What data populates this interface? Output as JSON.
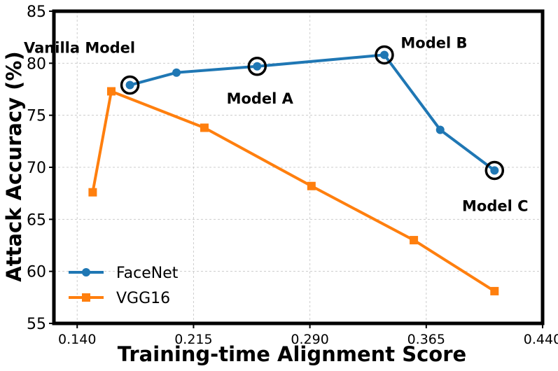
{
  "chart_data": {
    "type": "line",
    "title": "",
    "xlabel": "Training-time Alignment Score",
    "ylabel": "Attack Accuracy (%)",
    "xlim": [
      0.125,
      0.44
    ],
    "ylim": [
      55,
      85
    ],
    "x_ticks": [
      0.14,
      0.215,
      0.29,
      0.365,
      0.44
    ],
    "x_tick_labels": [
      "0.140",
      "0.215",
      "0.290",
      "0.365",
      "0.440"
    ],
    "y_ticks": [
      55,
      60,
      65,
      70,
      75,
      80,
      85
    ],
    "y_tick_labels": [
      "55",
      "60",
      "65",
      "70",
      "75",
      "80",
      "85"
    ],
    "grid": true,
    "legend_position": "bottom-left",
    "series": [
      {
        "name": "FaceNet",
        "color": "#1f77b4",
        "marker": "circle",
        "points": [
          {
            "x": 0.174,
            "y": 77.9
          },
          {
            "x": 0.204,
            "y": 79.1
          },
          {
            "x": 0.256,
            "y": 79.7
          },
          {
            "x": 0.338,
            "y": 80.8
          },
          {
            "x": 0.374,
            "y": 73.6
          },
          {
            "x": 0.409,
            "y": 69.7
          }
        ]
      },
      {
        "name": "VGG16",
        "color": "#ff7f0e",
        "marker": "square",
        "points": [
          {
            "x": 0.15,
            "y": 67.6
          },
          {
            "x": 0.162,
            "y": 77.3
          },
          {
            "x": 0.222,
            "y": 73.8
          },
          {
            "x": 0.291,
            "y": 68.2
          },
          {
            "x": 0.357,
            "y": 63.0
          },
          {
            "x": 0.409,
            "y": 58.1
          }
        ]
      }
    ],
    "highlighted": [
      {
        "label": "Vanilla Model",
        "x": 0.174,
        "y": 77.9
      },
      {
        "label": "Model A",
        "x": 0.256,
        "y": 79.7
      },
      {
        "label": "Model B",
        "x": 0.338,
        "y": 80.8
      },
      {
        "label": "Model C",
        "x": 0.409,
        "y": 69.7
      }
    ]
  }
}
